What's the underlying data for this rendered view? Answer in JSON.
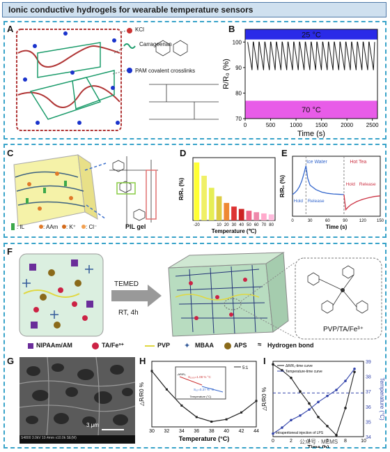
{
  "page_title": "Ionic conductive hydrogels for wearable temperature sensors",
  "panels": {
    "A": {
      "letter": "A",
      "labels": {
        "kcl": "KCl",
        "carrageenan": "Carrageenan",
        "pam": "PAM covalent crosslinks"
      }
    },
    "B": {
      "letter": "B"
    },
    "C": {
      "letter": "C",
      "legend": {
        "il": ": IL",
        "aam": ": AAm",
        "k": ": K⁺",
        "cl": ": Cl⁻"
      },
      "pil_label": "PIL gel"
    },
    "D": {
      "letter": "D"
    },
    "E": {
      "letter": "E",
      "annotations": {
        "ice_water": "Ice Water",
        "hot_tea": "Hot Tea",
        "hold1": "Hold",
        "release1": "Release",
        "hold2": "Hold",
        "release2": "Release"
      }
    },
    "F": {
      "letter": "F",
      "reagent": "TEMED",
      "conditions": "RT, 4h",
      "inset_label": "PVP/TA/Fe³⁺",
      "legend": [
        "NIPAAm/AM",
        "TA/Fe³⁺",
        "PVP",
        "MBAA",
        "APS",
        "Hydrogen bond"
      ]
    },
    "G": {
      "letter": "G",
      "scalebar": "3 μm",
      "footer": "S4800 3.0kV 10.4mm x10.0k SE(M)"
    },
    "H": {
      "letter": "H"
    },
    "I": {
      "letter": "I",
      "annotation": "Intraperitoneal injection of LPS"
    }
  },
  "chart_data": [
    {
      "id": "B",
      "type": "line",
      "title": "",
      "xlabel": "Time (s)",
      "ylabel": "R/R₀ (%)",
      "xlim": [
        0,
        2600
      ],
      "ylim": [
        70,
        105
      ],
      "xticks": [
        0,
        500,
        1000,
        1500,
        2000,
        2500
      ],
      "yticks": [
        70,
        80,
        90,
        100
      ],
      "bands": [
        {
          "label": "25 °C",
          "color": "#2a2ae8",
          "range": [
            101,
            105
          ]
        },
        {
          "label": "70 °C",
          "color": "#e85ce8",
          "range": [
            70,
            77
          ]
        }
      ],
      "series": [
        {
          "color": "#111111",
          "cycles": 22,
          "high": 100,
          "low": 89
        }
      ]
    },
    {
      "id": "D",
      "type": "bar",
      "title": "",
      "xlabel": "Temperature (℃)",
      "ylabel": "R/R₀ (%)",
      "categories": [
        "-20",
        "-10",
        "0",
        "10",
        "20",
        "30",
        "40",
        "50",
        "60",
        "70",
        "80"
      ],
      "xticks": [
        "-20",
        "10",
        "20",
        "30",
        "40",
        "50",
        "60",
        "70",
        "80"
      ],
      "values": [
        480,
        370,
        270,
        200,
        145,
        115,
        95,
        80,
        68,
        58,
        50
      ],
      "colors": [
        "#ffff33",
        "#f0f066",
        "#e6ee55",
        "#ddcc44",
        "#ee8833",
        "#dd3333",
        "#cc2222",
        "#ee6688",
        "#ee88aa",
        "#ffaacc",
        "#ffbbdd"
      ],
      "ylim": [
        0,
        520
      ]
    },
    {
      "id": "E",
      "type": "line",
      "title": "",
      "xlabel": "Time (s)",
      "ylabel": "R/R₀ (%)",
      "xticks": [
        0,
        30,
        60,
        90,
        120,
        150
      ],
      "xlim": [
        0,
        150
      ],
      "series": [
        {
          "color": "#3366cc",
          "x": [
            0,
            4,
            8,
            12,
            16,
            20,
            23,
            26,
            30,
            40,
            50,
            60,
            70,
            80,
            88
          ],
          "y": [
            0,
            0.3,
            0.7,
            1.3,
            2.2,
            3.5,
            4.6,
            2.6,
            1.5,
            0.8,
            0.4,
            0.2,
            0.1,
            0.05,
            0
          ]
        },
        {
          "color": "#cc3344",
          "x": [
            88,
            91,
            95,
            100,
            110,
            120,
            130,
            140,
            150
          ],
          "y": [
            0,
            -2.4,
            -2.0,
            -1.6,
            -1.1,
            -0.75,
            -0.5,
            -0.3,
            -0.2
          ]
        }
      ]
    },
    {
      "id": "H",
      "type": "line",
      "title": "",
      "xlabel": "Temperature (°C)",
      "ylabel": "△R/R0 %",
      "legend": "5:1",
      "xlim": [
        30,
        44
      ],
      "xticks": [
        30,
        32,
        34,
        36,
        38,
        40,
        42,
        44
      ],
      "series": [
        {
          "name": "5:1",
          "color": "#222222",
          "x": [
            30,
            32,
            34,
            36,
            38,
            40,
            42,
            44
          ],
          "y": [
            -1.5,
            -5.5,
            -9,
            -11.5,
            -12.5,
            -12,
            -10.5,
            -8
          ]
        }
      ],
      "inset": {
        "ylabel": "-ΔR/R₀",
        "xlabel": "Temperature (°C)",
        "labels": [
          "S₁₀ₒₒ=1.08 % °C",
          "S₁ₒ=0.37 % °C"
        ]
      }
    },
    {
      "id": "I",
      "type": "line",
      "title": "",
      "xlabel": "Time (h)",
      "ylabel": "△R/R0 %",
      "y2label": "Temperature (°C)",
      "xlim": [
        0,
        10
      ],
      "xticks": [
        0,
        2,
        4,
        6,
        8,
        10
      ],
      "y2ticks": [
        34,
        35,
        36,
        37,
        38,
        39
      ],
      "y2lim": [
        34,
        39
      ],
      "hline_y2": 36.9,
      "legend": [
        "ΔR/R₀-time curve",
        "Temperature-time curve"
      ],
      "series": [
        {
          "name": "ΔR/R₀-time curve",
          "color": "#222222",
          "x": [
            0,
            1,
            2,
            3,
            4,
            5,
            6,
            7,
            8,
            9
          ],
          "y2equiv": [
            38.8,
            38.4,
            37.9,
            37.0,
            36.2,
            35.3,
            34.7,
            34.1,
            35.9,
            38.3
          ]
        },
        {
          "name": "Temperature-time curve",
          "color": "#3344aa",
          "x": [
            0,
            1,
            2,
            3,
            4,
            5,
            6,
            7,
            8,
            9
          ],
          "y2equiv": [
            34.2,
            34.6,
            35.1,
            35.4,
            35.8,
            36.3,
            36.7,
            37.1,
            37.7,
            38.5
          ]
        }
      ]
    }
  ],
  "watermark": "公众号 · MEMS"
}
